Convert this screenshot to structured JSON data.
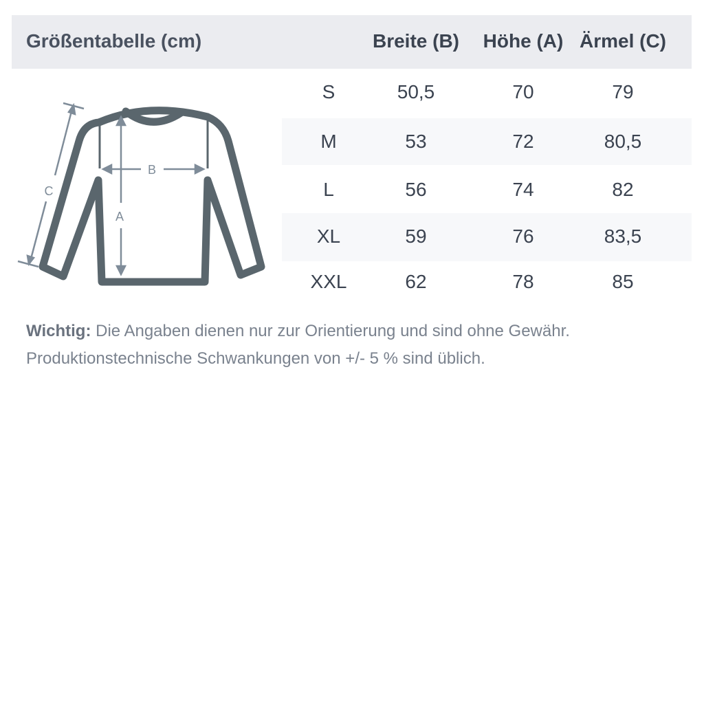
{
  "title": "Größentabelle (cm)",
  "columns": [
    "Breite (B)",
    "Höhe (A)",
    "Ärmel (C)"
  ],
  "rows": [
    {
      "size": "S",
      "b": "50,5",
      "a": "70",
      "c": "79"
    },
    {
      "size": "M",
      "b": "53",
      "a": "72",
      "c": "80,5"
    },
    {
      "size": "L",
      "b": "56",
      "a": "74",
      "c": "82"
    },
    {
      "size": "XL",
      "b": "59",
      "a": "76",
      "c": "83,5"
    },
    {
      "size": "XXL",
      "b": "62",
      "a": "78",
      "c": "85"
    }
  ],
  "diagram": {
    "label_a": "A",
    "label_b": "B",
    "label_c": "C"
  },
  "note": {
    "bold": "Wichtig:",
    "line1": " Die Angaben dienen nur zur Orientierung und sind ohne Gewähr.",
    "line2": "Produktionstechnische Schwankungen von +/- 5 % sind üblich."
  },
  "colors": {
    "header_bg": "#ebecf0",
    "stripe_bg": "#f7f8fa",
    "outline": "#5a666d",
    "arrows": "#7f8c99"
  }
}
